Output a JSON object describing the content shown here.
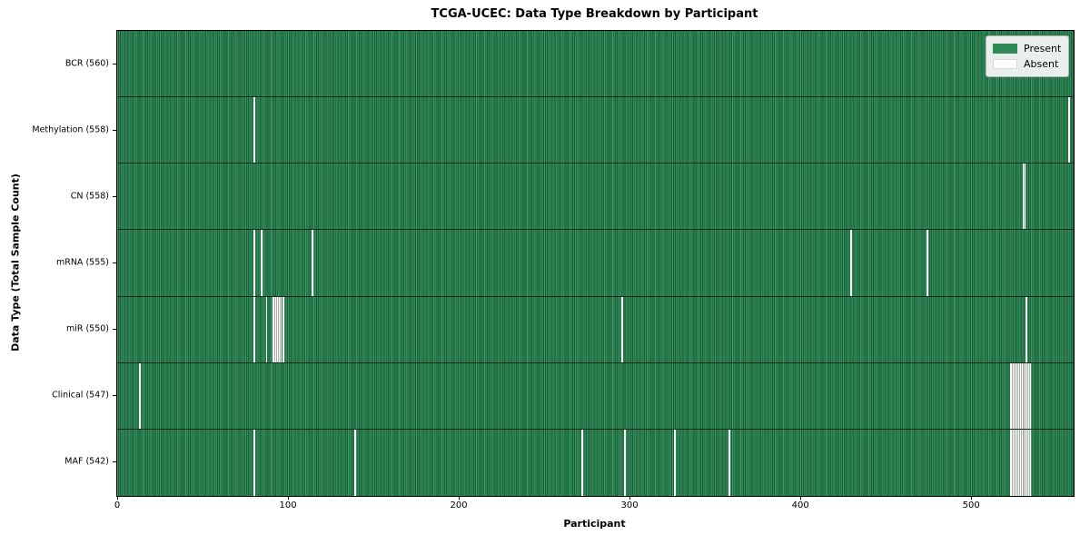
{
  "colors": {
    "present": "#2e8b57",
    "present_edge": "#1c5e3a",
    "absent": "#ffffff",
    "row_divider": "#14241a",
    "plot_border": "#000000",
    "legend_bg": "#ebefeb",
    "legend_border": "#b3b3b3",
    "absent_cluster_edge": "#a8b0a8"
  },
  "chart_data": {
    "type": "heatmap",
    "title": "TCGA-UCEC: Data Type Breakdown by Participant",
    "xlabel": "Participant",
    "ylabel": "Data Type (Total Sample Count)",
    "legend": {
      "present": "Present",
      "absent": "Absent"
    },
    "legend_position": "upper right",
    "grid": false,
    "total_participants": 560,
    "x_ticks": [
      0,
      100,
      200,
      300,
      400,
      500
    ],
    "rows": [
      {
        "name": "bcr",
        "label": "BCR (560)",
        "present_count": 560,
        "absent_participants": []
      },
      {
        "name": "methylation",
        "label": "Methylation (558)",
        "present_count": 558,
        "absent_participants": [
          80,
          557
        ]
      },
      {
        "name": "cn",
        "label": "CN (558)",
        "present_count": 558,
        "absent_participants": [
          530,
          531
        ]
      },
      {
        "name": "mrna",
        "label": "mRNA (555)",
        "present_count": 555,
        "absent_participants": [
          80,
          84,
          114,
          429,
          474
        ]
      },
      {
        "name": "mir",
        "label": "miR (550)",
        "present_count": 550,
        "absent_participants": [
          80,
          87,
          91,
          92,
          93,
          94,
          95,
          97,
          295,
          532
        ]
      },
      {
        "name": "clinical",
        "label": "Clinical (547)",
        "present_count": 547,
        "absent_participants": [
          13,
          523,
          524,
          525,
          526,
          527,
          528,
          529,
          530,
          531,
          532,
          533,
          534
        ]
      },
      {
        "name": "maf",
        "label": "MAF (542)",
        "present_count": 542,
        "absent_participants": [
          80,
          139,
          272,
          297,
          326,
          358,
          523,
          524,
          525,
          526,
          527,
          528,
          529,
          530,
          531,
          532,
          533,
          534
        ]
      }
    ]
  }
}
